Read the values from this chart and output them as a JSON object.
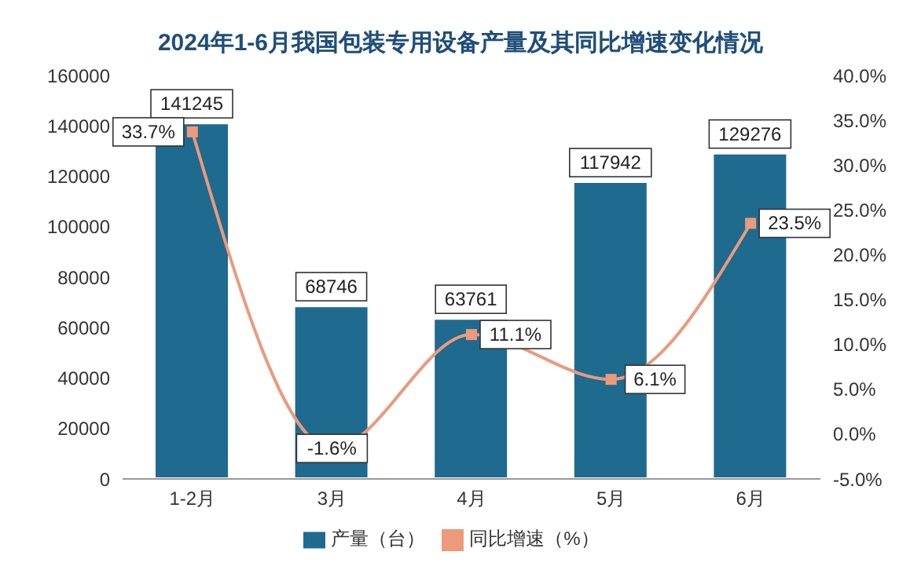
{
  "chart_data": {
    "type": "bar",
    "title": "2024年1-6月我国包装专用设备产量及其同比增速变化情况",
    "categories": [
      "1-2月",
      "3月",
      "4月",
      "5月",
      "6月"
    ],
    "series": [
      {
        "name": "产量（台）",
        "color": "#1f6a8f",
        "values": [
          141245,
          68746,
          63761,
          117942,
          129276
        ],
        "value_labels": [
          "141245",
          "68746",
          "63761",
          "117942",
          "129276"
        ]
      },
      {
        "name": "同比增速（%）",
        "type": "line",
        "axis": "y2",
        "color": "#eb9a7c",
        "values": [
          33.7,
          -1.6,
          11.1,
          6.1,
          23.5
        ],
        "value_labels": [
          "33.7%",
          "-1.6%",
          "11.1%",
          "6.1%",
          "23.5%"
        ]
      }
    ],
    "ylim": [
      0,
      160000
    ],
    "yticks": [
      0,
      20000,
      40000,
      60000,
      80000,
      100000,
      120000,
      140000,
      160000
    ],
    "y2lim": [
      -5,
      40
    ],
    "y2ticks": [
      {
        "value": -5,
        "label": "-5.0%"
      },
      {
        "value": 0,
        "label": "0.0%"
      },
      {
        "value": 5,
        "label": "5.0%"
      },
      {
        "value": 10,
        "label": "10.0%"
      },
      {
        "value": 15,
        "label": "15.0%"
      },
      {
        "value": 20,
        "label": "20.0%"
      },
      {
        "value": 25,
        "label": "25.0%"
      },
      {
        "value": 30,
        "label": "30.0%"
      },
      {
        "value": 35,
        "label": "35.0%"
      },
      {
        "value": 40,
        "label": "40.0%"
      }
    ],
    "grid": false,
    "legend": "bottom",
    "marker": "square",
    "line_style": "solid"
  }
}
